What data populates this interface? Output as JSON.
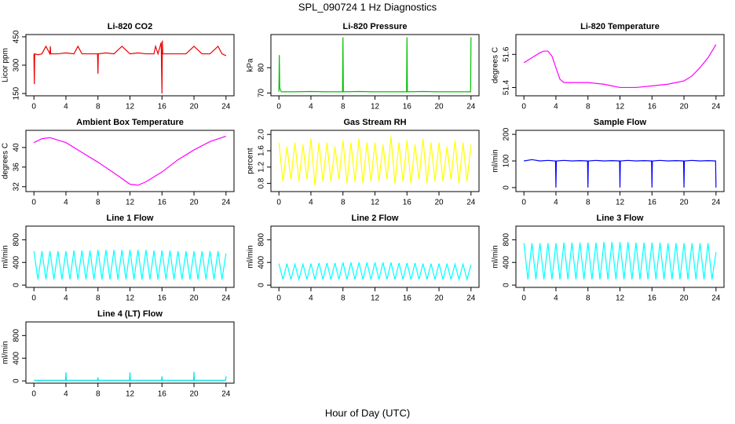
{
  "title": "SPL_090724  1 Hz Diagnostics",
  "xlabel": "Hour of Day (UTC)",
  "chart_data": [
    {
      "type": "line",
      "title": "Li-820 CO2",
      "ylabel": "Licor ppm",
      "xlim": [
        -1,
        25
      ],
      "xticks": [
        0,
        4,
        8,
        12,
        16,
        20,
        24
      ],
      "ylim": [
        138,
        462
      ],
      "yticks": [
        150,
        300,
        450
      ],
      "x": [
        0,
        0.05,
        0.1,
        0.5,
        1,
        1.5,
        2,
        2.05,
        2.1,
        3,
        4,
        5,
        5.5,
        6,
        7,
        7.95,
        8,
        8.05,
        9,
        10,
        11,
        12,
        13,
        14,
        15,
        15.2,
        15.5,
        15.9,
        16,
        16.05,
        16.1,
        17,
        18,
        19,
        20,
        21,
        22,
        23,
        23.5,
        24
      ],
      "series": [
        {
          "color": "#ee0000",
          "values": [
            360,
            200,
            360,
            355,
            360,
            400,
            360,
            400,
            360,
            360,
            365,
            360,
            400,
            360,
            360,
            360,
            255,
            360,
            365,
            360,
            400,
            360,
            365,
            360,
            360,
            400,
            360,
            420,
            150,
            430,
            360,
            360,
            360,
            360,
            400,
            360,
            360,
            400,
            360,
            350
          ]
        }
      ]
    },
    {
      "type": "line",
      "title": "Li-820 Pressure",
      "ylabel": "kPa",
      "xlim": [
        -1,
        25
      ],
      "xticks": [
        0,
        4,
        8,
        12,
        16,
        20,
        24
      ],
      "ylim": [
        68.9,
        93.1
      ],
      "yticks": [
        70,
        80
      ],
      "x": [
        0,
        0.05,
        0.1,
        0.3,
        2,
        4,
        6,
        7.95,
        8,
        8.05,
        10,
        12,
        14,
        15.95,
        16,
        16.05,
        18,
        20,
        22,
        23.95,
        24
      ],
      "series": [
        {
          "color": "#00c000",
          "values": [
            70.5,
            85,
            72,
            70.5,
            70.5,
            70.6,
            70.5,
            70.5,
            92,
            70.5,
            70.6,
            70.5,
            70.5,
            70.5,
            92,
            70.5,
            70.6,
            70.5,
            70.5,
            70.5,
            92
          ]
        }
      ]
    },
    {
      "type": "line",
      "title": "Li-820 Temperature",
      "ylabel": "degrees C",
      "xlim": [
        -1,
        25
      ],
      "xticks": [
        0,
        4,
        8,
        12,
        16,
        20,
        24
      ],
      "ylim": [
        51.35,
        51.72
      ],
      "yticks": [
        51.4,
        51.6
      ],
      "x": [
        0,
        1,
        2,
        2.5,
        3,
        3.5,
        4,
        4.5,
        5,
        6,
        8,
        10,
        11,
        12,
        14,
        16,
        18,
        19,
        20,
        21,
        22,
        23,
        24
      ],
      "series": [
        {
          "color": "#ff00ff",
          "values": [
            51.55,
            51.58,
            51.61,
            51.62,
            51.62,
            51.59,
            51.52,
            51.45,
            51.43,
            51.43,
            51.43,
            51.42,
            51.41,
            51.4,
            51.4,
            51.41,
            51.42,
            51.43,
            51.44,
            51.47,
            51.52,
            51.58,
            51.66
          ]
        }
      ]
    },
    {
      "type": "line",
      "title": "Ambient Box Temperature",
      "ylabel": "degrees C",
      "xlim": [
        -1,
        25
      ],
      "xticks": [
        0,
        4,
        8,
        12,
        16,
        20,
        24
      ],
      "ylim": [
        31,
        43.5
      ],
      "yticks": [
        32,
        36,
        40
      ],
      "x": [
        0,
        1,
        2,
        3,
        4,
        6,
        8,
        10,
        12,
        13,
        14,
        16,
        18,
        20,
        22,
        24
      ],
      "series": [
        {
          "color": "#ff00ff",
          "values": [
            41,
            41.8,
            42,
            41.5,
            41,
            39,
            37,
            34.8,
            32.5,
            32.3,
            33,
            35,
            37.5,
            39.5,
            41.2,
            42.3
          ]
        }
      ]
    },
    {
      "type": "line",
      "title": "Gas Stream RH",
      "ylabel": "percent",
      "xlim": [
        -1,
        25
      ],
      "xticks": [
        0,
        4,
        8,
        12,
        16,
        20,
        24
      ],
      "ylim": [
        0.6,
        2.1
      ],
      "yticks": [
        0.8,
        1.2,
        1.6,
        {
          "value": 2,
          "label": "2.0"
        }
      ],
      "x": [
        0,
        0.5,
        1,
        1.5,
        2,
        2.5,
        3,
        3.5,
        4,
        4.5,
        5,
        5.5,
        6,
        6.5,
        7,
        7.5,
        8,
        8.5,
        9,
        9.5,
        10,
        10.5,
        11,
        11.5,
        12,
        12.5,
        13,
        13.5,
        14,
        14.5,
        15,
        15.5,
        16,
        16.5,
        17,
        17.5,
        18,
        18.5,
        19,
        19.5,
        20,
        20.5,
        21,
        21.5,
        22,
        22.5,
        23,
        23.5,
        24
      ],
      "series": [
        {
          "color": "#ffff00",
          "values": [
            1.8,
            0.85,
            1.7,
            0.9,
            1.8,
            0.85,
            1.75,
            0.9,
            1.9,
            0.75,
            1.8,
            0.85,
            1.8,
            0.85,
            1.7,
            0.9,
            1.85,
            0.8,
            1.8,
            0.85,
            1.9,
            0.8,
            1.8,
            0.85,
            1.8,
            0.85,
            1.75,
            0.9,
            1.95,
            0.8,
            1.8,
            0.85,
            1.85,
            0.8,
            1.75,
            0.9,
            1.9,
            0.8,
            1.8,
            0.85,
            1.8,
            0.85,
            1.7,
            0.9,
            1.85,
            0.8,
            1.8,
            0.85,
            1.75
          ]
        }
      ]
    },
    {
      "type": "line",
      "title": "Sample Flow",
      "ylabel": "ml/min",
      "xlim": [
        -1,
        25
      ],
      "xticks": [
        0,
        4,
        8,
        12,
        16,
        20,
        24
      ],
      "ylim": [
        -15,
        215
      ],
      "yticks": [
        0,
        100,
        200
      ],
      "x": [
        0,
        1,
        2,
        3,
        3.95,
        4,
        4.05,
        5,
        6,
        7,
        7.95,
        8,
        8.05,
        9,
        10,
        11,
        11.95,
        12,
        12.05,
        13,
        14,
        15,
        15.95,
        16,
        16.05,
        17,
        18,
        19,
        19.95,
        20,
        20.05,
        21,
        22,
        23,
        23.95,
        24
      ],
      "series": [
        {
          "color": "#0000ff",
          "values": [
            100,
            105,
            100,
            102,
            100,
            0,
            100,
            102,
            100,
            101,
            100,
            0,
            100,
            102,
            100,
            101,
            100,
            0,
            100,
            102,
            100,
            101,
            100,
            0,
            100,
            102,
            100,
            101,
            100,
            0,
            100,
            102,
            100,
            101,
            100,
            0
          ]
        }
      ]
    },
    {
      "type": "line",
      "title": "Line 1 Flow",
      "ylabel": "ml/min",
      "xlim": [
        -1,
        25
      ],
      "xticks": [
        0,
        4,
        8,
        12,
        16,
        20,
        24
      ],
      "ylim": [
        -40,
        1040
      ],
      "yticks": [
        0,
        400,
        800
      ],
      "x": [
        0,
        0.5,
        1,
        1.5,
        2,
        2.5,
        3,
        3.5,
        4,
        4.5,
        5,
        5.5,
        6,
        6.5,
        7,
        7.5,
        8,
        8.5,
        9,
        9.5,
        10,
        10.5,
        11,
        11.5,
        12,
        12.5,
        13,
        13.5,
        14,
        14.5,
        15,
        15.5,
        16,
        16.5,
        17,
        17.5,
        18,
        18.5,
        19,
        19.5,
        20,
        20.5,
        21,
        21.5,
        22,
        22.5,
        23,
        23.5,
        24
      ],
      "series": [
        {
          "color": "#00ffff",
          "values": [
            600,
            100,
            600,
            100,
            600,
            100,
            600,
            100,
            600,
            100,
            610,
            100,
            610,
            100,
            610,
            100,
            620,
            100,
            620,
            100,
            620,
            100,
            620,
            100,
            620,
            100,
            620,
            100,
            620,
            100,
            610,
            100,
            610,
            100,
            610,
            100,
            600,
            100,
            600,
            100,
            600,
            100,
            600,
            100,
            600,
            100,
            600,
            100,
            560
          ]
        }
      ]
    },
    {
      "type": "line",
      "title": "Line 2 Flow",
      "ylabel": "ml/min",
      "xlim": [
        -1,
        25
      ],
      "xticks": [
        0,
        4,
        8,
        12,
        16,
        20,
        24
      ],
      "ylim": [
        -40,
        1040
      ],
      "yticks": [
        0,
        400,
        800
      ],
      "x": [
        0,
        0.5,
        1,
        1.5,
        2,
        2.5,
        3,
        3.5,
        4,
        4.5,
        5,
        5.5,
        6,
        6.5,
        7,
        7.5,
        8,
        8.5,
        9,
        9.5,
        10,
        10.5,
        11,
        11.5,
        12,
        12.5,
        13,
        13.5,
        14,
        14.5,
        15,
        15.5,
        16,
        16.5,
        17,
        17.5,
        18,
        18.5,
        19,
        19.5,
        20,
        20.5,
        21,
        21.5,
        22,
        22.5,
        23,
        23.5,
        24
      ],
      "series": [
        {
          "color": "#00ffff",
          "values": [
            380,
            100,
            380,
            100,
            370,
            100,
            370,
            100,
            380,
            100,
            390,
            100,
            390,
            100,
            390,
            100,
            400,
            100,
            400,
            100,
            400,
            100,
            400,
            100,
            400,
            100,
            400,
            100,
            400,
            100,
            390,
            100,
            390,
            100,
            390,
            100,
            380,
            100,
            380,
            100,
            380,
            100,
            380,
            100,
            370,
            100,
            370,
            100,
            360
          ]
        }
      ]
    },
    {
      "type": "line",
      "title": "Line 3 Flow",
      "ylabel": "ml/min",
      "xlim": [
        -1,
        25
      ],
      "xticks": [
        0,
        4,
        8,
        12,
        16,
        20,
        24
      ],
      "ylim": [
        -40,
        1040
      ],
      "yticks": [
        0,
        400,
        800
      ],
      "x": [
        0,
        0.5,
        1,
        1.5,
        2,
        2.5,
        3,
        3.5,
        4,
        4.5,
        5,
        5.5,
        6,
        6.5,
        7,
        7.5,
        8,
        8.5,
        9,
        9.5,
        10,
        10.5,
        11,
        11.5,
        12,
        12.5,
        13,
        13.5,
        14,
        14.5,
        15,
        15.5,
        16,
        16.5,
        17,
        17.5,
        18,
        18.5,
        19,
        19.5,
        20,
        20.5,
        21,
        21.5,
        22,
        22.5,
        23,
        23.5,
        24
      ],
      "series": [
        {
          "color": "#00ffff",
          "values": [
            740,
            100,
            740,
            100,
            740,
            100,
            740,
            100,
            740,
            100,
            750,
            100,
            750,
            100,
            750,
            100,
            750,
            100,
            750,
            100,
            760,
            100,
            760,
            100,
            760,
            100,
            760,
            100,
            750,
            100,
            750,
            100,
            750,
            100,
            750,
            100,
            740,
            100,
            740,
            100,
            740,
            100,
            740,
            100,
            740,
            100,
            740,
            100,
            580
          ]
        }
      ]
    },
    {
      "type": "line",
      "title": "Line 4 (LT) Flow",
      "ylabel": "ml/min",
      "xlim": [
        -1,
        25
      ],
      "xticks": [
        0,
        4,
        8,
        12,
        16,
        20,
        24
      ],
      "ylim": [
        -40,
        1040
      ],
      "yticks": [
        0,
        400,
        800
      ],
      "x": [
        0,
        2,
        3.95,
        4,
        4.05,
        6,
        7.95,
        8,
        8.05,
        10,
        11.95,
        12,
        12.05,
        14,
        15.95,
        16,
        16.05,
        18,
        19.95,
        20,
        20.05,
        22,
        23.95,
        24
      ],
      "series": [
        {
          "color": "#00e5e5",
          "values": [
            10,
            10,
            10,
            150,
            10,
            10,
            10,
            60,
            10,
            10,
            10,
            150,
            10,
            10,
            10,
            80,
            10,
            10,
            10,
            160,
            10,
            10,
            10,
            80
          ]
        }
      ]
    }
  ]
}
